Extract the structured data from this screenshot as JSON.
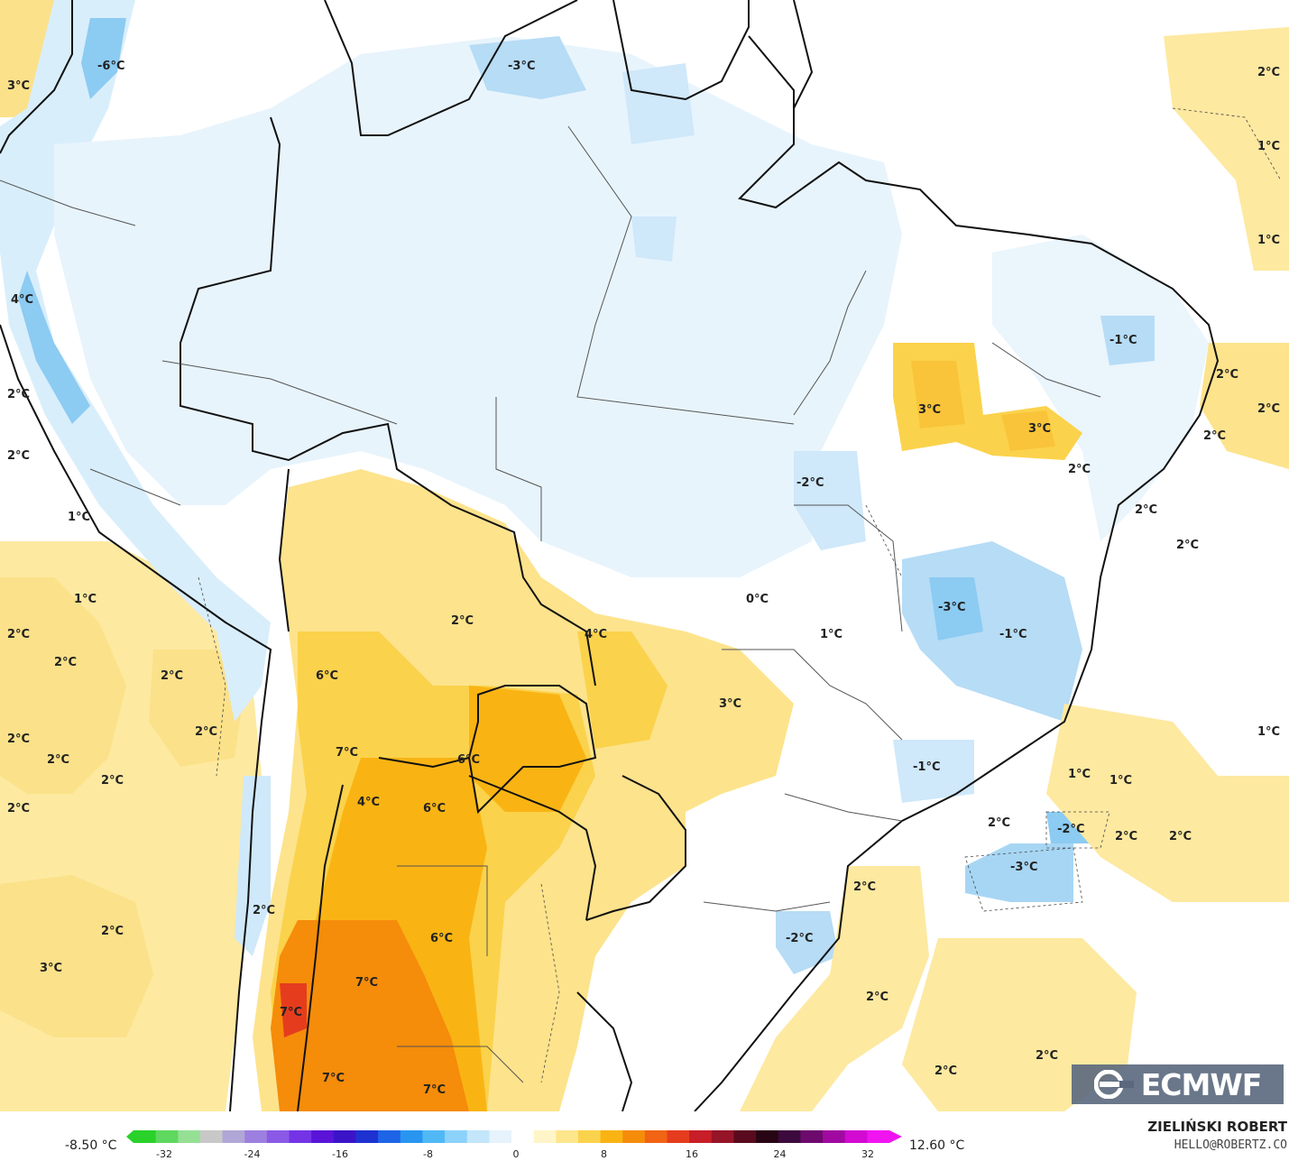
{
  "map": {
    "labels": [
      "-6°C",
      "3°C",
      "-3°C",
      "2°C",
      "1°C",
      "1°C",
      "4°C",
      "2°C",
      "2°C",
      "-1°C",
      "2°C",
      "2°C",
      "3°C",
      "3°C",
      "2°C",
      "2°C",
      "1°C",
      "-2°C",
      "2°C",
      "2°C",
      "1°C",
      "0°C",
      "-3°C",
      "-1°C",
      "2°C",
      "2°C",
      "4°C",
      "1°C",
      "2°C",
      "6°C",
      "3°C",
      "2°C",
      "1°C",
      "2°C",
      "7°C",
      "6°C",
      "2°C",
      "-1°C",
      "1°C",
      "1°C",
      "2°C",
      "4°C",
      "6°C",
      "2°C",
      "-2°C",
      "2°C",
      "2°C",
      "-3°C",
      "2°C",
      "2°C",
      "2°C",
      "6°C",
      "-2°C",
      "2°C",
      "3°C",
      "7°C",
      "2°C",
      "7°C",
      "2°C",
      "7°C",
      "7°C",
      "2°C",
      "2°C"
    ]
  },
  "colorbar": {
    "min_text": "-8.50 °C",
    "max_text": "12.60 °C",
    "ticks": [
      "-32",
      "-24",
      "-16",
      "-8",
      "0",
      "8",
      "16",
      "24",
      "32"
    ],
    "colors": [
      "#2ad12a",
      "#5fd85f",
      "#95e095",
      "#c8c8c8",
      "#b0a7d6",
      "#9d7fe0",
      "#8a5ae6",
      "#7434e6",
      "#5a14d8",
      "#3c14c8",
      "#1e32d2",
      "#1e64e6",
      "#2896f0",
      "#50b9f5",
      "#8cd2fa",
      "#c3e6fa",
      "#e6f3fc",
      "#ffffff",
      "#fff5c8",
      "#fde68c",
      "#fbd24b",
      "#f9b414",
      "#f58c0a",
      "#f06414",
      "#e63c1e",
      "#c81e28",
      "#961428",
      "#5a0a1e",
      "#280514",
      "#3c0a3c",
      "#6e0a6e",
      "#a00aa0",
      "#d20ad2",
      "#f014f0"
    ]
  },
  "logo": {
    "text": "ECMWF"
  },
  "credit": {
    "name": "ZIELIŃSKI ROBERT",
    "email": "HELLO@ROBERTZ.CO"
  }
}
